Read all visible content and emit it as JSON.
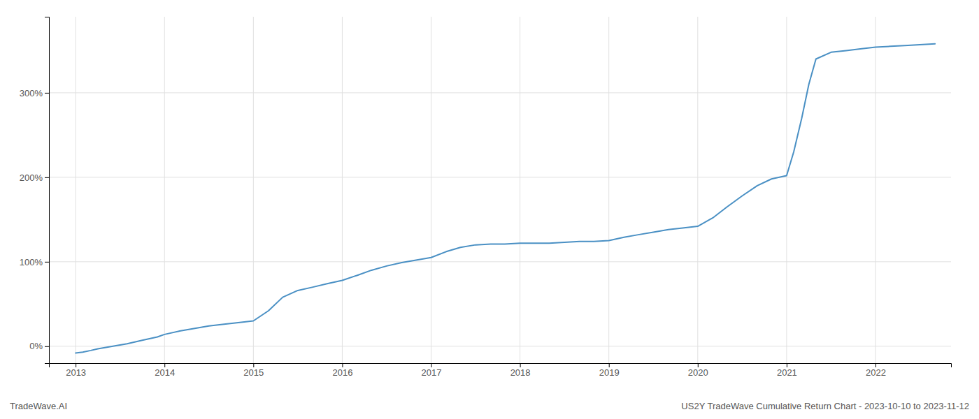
{
  "chart_data": {
    "type": "line",
    "title": "US2Y TradeWave Cumulative Return Chart - 2023-10-10 to 2023-11-12",
    "annotations": [
      "TradeWave.AI"
    ],
    "x": [
      2013.0,
      2013.08,
      2013.17,
      2013.25,
      2013.42,
      2013.58,
      2013.75,
      2013.92,
      2014.0,
      2014.17,
      2014.33,
      2014.5,
      2014.67,
      2014.83,
      2015.0,
      2015.17,
      2015.33,
      2015.5,
      2015.67,
      2015.83,
      2016.0,
      2016.17,
      2016.33,
      2016.5,
      2016.67,
      2016.83,
      2017.0,
      2017.17,
      2017.33,
      2017.5,
      2017.67,
      2017.83,
      2018.0,
      2018.17,
      2018.33,
      2018.5,
      2018.67,
      2018.83,
      2019.0,
      2019.17,
      2019.33,
      2019.5,
      2019.67,
      2019.83,
      2020.0,
      2020.17,
      2020.33,
      2020.5,
      2020.67,
      2020.83,
      2021.0,
      2021.08,
      2021.17,
      2021.25,
      2021.33,
      2021.5,
      2021.67,
      2021.83,
      2022.0,
      2022.17,
      2022.33,
      2022.5,
      2022.67
    ],
    "values": [
      -8,
      -7,
      -5,
      -3,
      0,
      3,
      7,
      11,
      14,
      18,
      21,
      24,
      26,
      28,
      30,
      42,
      58,
      66,
      70,
      74,
      78,
      84,
      90,
      95,
      99,
      102,
      105,
      112,
      117,
      120,
      121,
      121,
      122,
      122,
      122,
      123,
      124,
      124,
      125,
      129,
      132,
      135,
      138,
      140,
      142,
      152,
      165,
      178,
      190,
      198,
      202,
      230,
      270,
      310,
      340,
      348,
      350,
      352,
      354,
      355,
      356,
      357,
      358
    ],
    "color": "#4a90c4",
    "xlim": [
      2012.7,
      2022.85
    ],
    "xticks": [
      2013,
      2014,
      2015,
      2016,
      2017,
      2018,
      2019,
      2020,
      2021,
      2022
    ],
    "ylim": [
      -20,
      390
    ],
    "yticks": [
      {
        "value": 0,
        "label": "0%"
      },
      {
        "value": 100,
        "label": "100%"
      },
      {
        "value": 200,
        "label": "200%"
      },
      {
        "value": 300,
        "label": "300%"
      }
    ],
    "grid": true
  }
}
